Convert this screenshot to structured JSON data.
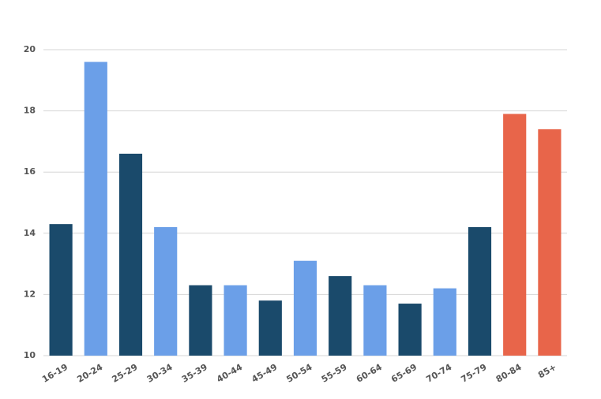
{
  "chart_data": {
    "type": "bar",
    "categories": [
      "16-19",
      "20-24",
      "25-29",
      "30-34",
      "35-39",
      "40-44",
      "45-49",
      "50-54",
      "55-59",
      "60-64",
      "65-69",
      "70-74",
      "75-79",
      "80-84",
      "85+"
    ],
    "values": [
      14.3,
      19.6,
      16.6,
      14.2,
      12.3,
      12.3,
      11.8,
      13.1,
      12.6,
      12.3,
      11.7,
      12.2,
      14.2,
      17.9,
      17.4
    ],
    "colors": [
      "#1a4a6b",
      "#6b9fe8",
      "#1a4a6b",
      "#6b9fe8",
      "#1a4a6b",
      "#6b9fe8",
      "#1a4a6b",
      "#6b9fe8",
      "#1a4a6b",
      "#6b9fe8",
      "#1a4a6b",
      "#6b9fe8",
      "#1a4a6b",
      "#e8654a",
      "#e8654a"
    ],
    "ylim": [
      10,
      20
    ],
    "yticks": [
      10,
      12,
      14,
      16,
      18,
      20
    ],
    "grid": true
  }
}
